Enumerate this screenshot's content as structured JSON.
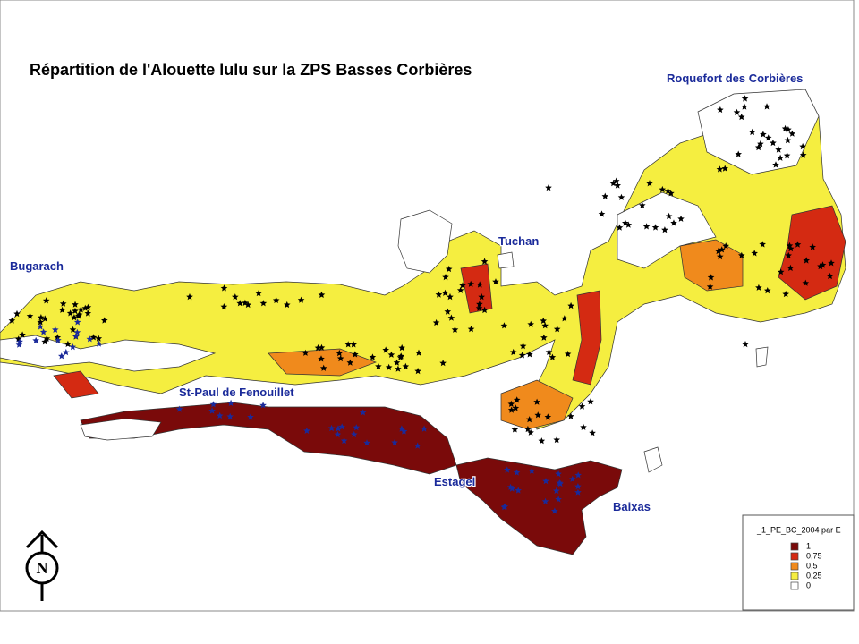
{
  "title": "Répartition de l'Alouette lulu sur la ZPS Basses Corbières",
  "places": [
    {
      "label": "Roquefort des Corbières"
    },
    {
      "label": "Tuchan"
    },
    {
      "label": "Bugarach"
    },
    {
      "label": "St-Paul de Fenouillet"
    },
    {
      "label": "Estagel"
    },
    {
      "label": "Baixas"
    }
  ],
  "north_arrow": {
    "label": "N"
  },
  "legend": {
    "title": "_1_PE_BC_2004 par E",
    "items": [
      {
        "label": "1",
        "color": "#7a0a0a"
      },
      {
        "label": "0,75",
        "color": "#d42a12"
      },
      {
        "label": "0,5",
        "color": "#f08a1c"
      },
      {
        "label": "0,25",
        "color": "#f5ee40"
      },
      {
        "label": "0",
        "color": "#ffffff"
      }
    ]
  }
}
